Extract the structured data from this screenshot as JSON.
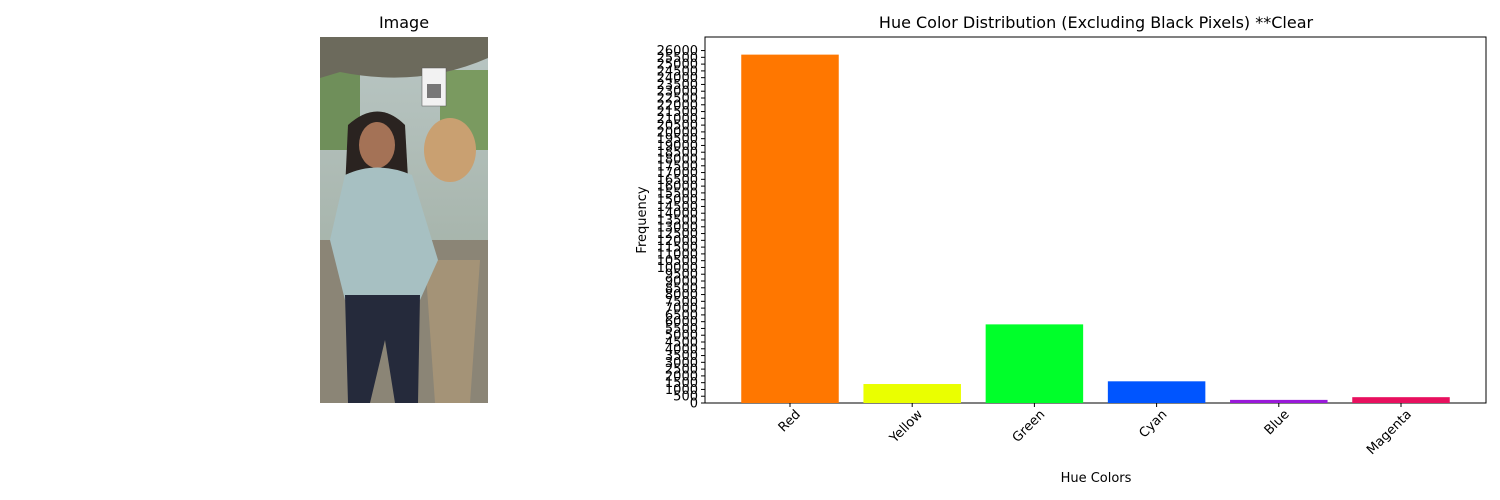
{
  "image_panel": {
    "title": "Image"
  },
  "chart_data": {
    "type": "bar",
    "title": "Hue Color Distribution (Excluding Black Pixels) **Clear",
    "xlabel": "Hue Colors",
    "ylabel": "Frequency",
    "categories": [
      "Red",
      "Yellow",
      "Green",
      "Cyan",
      "Blue",
      "Magenta"
    ],
    "values": [
      25700,
      1400,
      5800,
      1600,
      230,
      430
    ],
    "colors": [
      "#ff7700",
      "#eaff00",
      "#00ff2a",
      "#0055ff",
      "#9919d9",
      "#e8105e"
    ],
    "yticks": [
      0,
      500,
      1000,
      1500,
      2000,
      2500,
      3000,
      3500,
      4000,
      4500,
      5000,
      5500,
      6000,
      6500,
      7000,
      7500,
      8000,
      8500,
      9000,
      9500,
      10000,
      10500,
      11000,
      11500,
      12000,
      12500,
      13000,
      13500,
      14000,
      14500,
      15000,
      15500,
      16000,
      16500,
      17000,
      17500,
      18000,
      18500,
      19000,
      19500,
      20000,
      20500,
      21000,
      21500,
      22000,
      22500,
      23000,
      23500,
      24000,
      24500,
      25000,
      25500,
      26000
    ],
    "ylim": [
      0,
      27000
    ],
    "xtick_rotation_deg": 45,
    "grid": false,
    "legend": "none"
  }
}
